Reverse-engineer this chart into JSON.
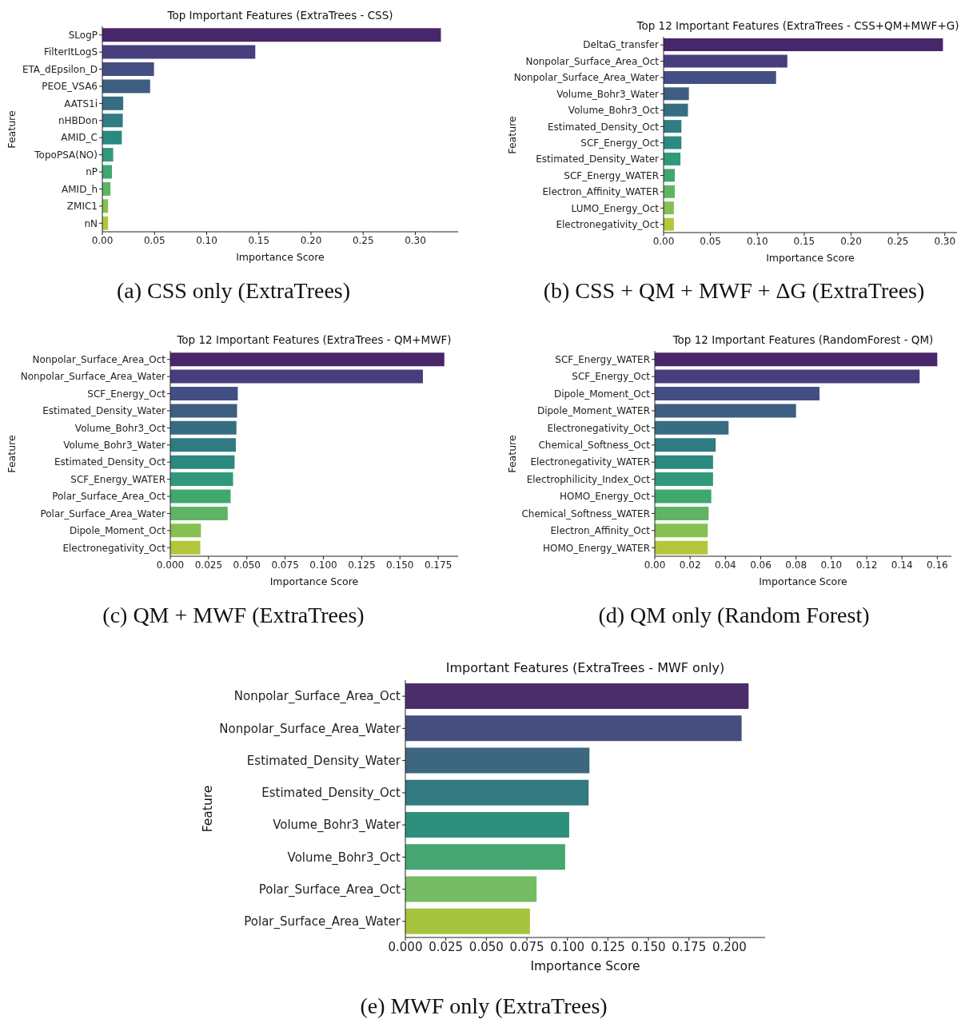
{
  "chart_data": [
    {
      "type": "bar",
      "orientation": "horizontal",
      "title": "Top Important Features (ExtraTrees - CSS)",
      "xlabel": "Importance Score",
      "ylabel": "Feature",
      "categories": [
        "SLogP",
        "FilterItLogS",
        "ETA_dEpsilon_D",
        "PEOE_VSA6",
        "AATS1i",
        "nHBDon",
        "AMID_C",
        "TopoPSA(NO)",
        "nP",
        "AMID_h",
        "ZMIC1",
        "nN"
      ],
      "values": [
        0.3245,
        0.1466,
        0.0495,
        0.0458,
        0.02,
        0.0196,
        0.0187,
        0.0104,
        0.0092,
        0.0078,
        0.0055,
        0.0055
      ],
      "colors": [
        "#47266a",
        "#483e7d",
        "#434e82",
        "#3d5e80",
        "#376d83",
        "#317b82",
        "#2b8a80",
        "#30997a",
        "#40a76f",
        "#5fb463",
        "#86bf52",
        "#b3c63c"
      ],
      "xlim": [
        0,
        0.341
      ],
      "xticks": [
        {
          "value": 0,
          "label": "0.00"
        },
        {
          "value": 0.05,
          "label": "0.05"
        },
        {
          "value": 0.1,
          "label": "0.10"
        },
        {
          "value": 0.15,
          "label": "0.15"
        },
        {
          "value": 0.2,
          "label": "0.20"
        },
        {
          "value": 0.25,
          "label": "0.25"
        },
        {
          "value": 0.3,
          "label": "0.30"
        }
      ],
      "annotations": [
        "(a) CSS only (ExtraTrees)"
      ]
    },
    {
      "type": "bar",
      "orientation": "horizontal",
      "title": "Top 12 Important Features (ExtraTrees - CSS+QM+MWF+G)",
      "xlabel": "Importance Score",
      "ylabel": "Feature",
      "categories": [
        "DeltaG_transfer",
        "Nonpolar_Surface_Area_Oct",
        "Nonpolar_Surface_Area_Water",
        "Volume_Bohr3_Water",
        "Volume_Bohr3_Oct",
        "Estimated_Density_Oct",
        "SCF_Energy_Oct",
        "Estimated_Density_Water",
        "SCF_Energy_WATER",
        "Electron_Affinity_WATER",
        "LUMO_Energy_Oct",
        "Electronegativity_Oct"
      ],
      "values": [
        0.298,
        0.132,
        0.12,
        0.027,
        0.026,
        0.019,
        0.019,
        0.018,
        0.012,
        0.012,
        0.011,
        0.011
      ],
      "colors": [
        "#47266a",
        "#483e7d",
        "#434e82",
        "#3d5e80",
        "#376d83",
        "#317b82",
        "#2b8a80",
        "#30997a",
        "#40a76f",
        "#5fb463",
        "#86bf52",
        "#b3c63c"
      ],
      "xlim": [
        0,
        0.313
      ],
      "xticks": [
        {
          "value": 0,
          "label": "0.00"
        },
        {
          "value": 0.05,
          "label": "0.05"
        },
        {
          "value": 0.1,
          "label": "0.10"
        },
        {
          "value": 0.15,
          "label": "0.15"
        },
        {
          "value": 0.2,
          "label": "0.20"
        },
        {
          "value": 0.25,
          "label": "0.25"
        },
        {
          "value": 0.3,
          "label": "0.30"
        }
      ],
      "annotations": [
        "(b) CSS + QM + MWF + ΔG (ExtraTrees)"
      ]
    },
    {
      "type": "bar",
      "orientation": "horizontal",
      "title": "Top 12 Important Features (ExtraTrees - QM+MWF)",
      "xlabel": "Importance Score",
      "ylabel": "Feature",
      "categories": [
        "Nonpolar_Surface_Area_Oct",
        "Nonpolar_Surface_Area_Water",
        "SCF_Energy_Oct",
        "Estimated_Density_Water",
        "Volume_Bohr3_Oct",
        "Volume_Bohr3_Water",
        "Estimated_Density_Oct",
        "SCF_Energy_WATER",
        "Polar_Surface_Area_Oct",
        "Polar_Surface_Area_Water",
        "Dipole_Moment_Oct",
        "Electronegativity_Oct"
      ],
      "values": [
        0.179,
        0.165,
        0.0441,
        0.0436,
        0.0432,
        0.0428,
        0.042,
        0.041,
        0.0394,
        0.0375,
        0.02,
        0.0196
      ],
      "colors": [
        "#47266a",
        "#483e7d",
        "#434e82",
        "#3d5e80",
        "#376d83",
        "#317b82",
        "#2b8a80",
        "#30997a",
        "#40a76f",
        "#5fb463",
        "#86bf52",
        "#b3c63c"
      ],
      "xlim": [
        0,
        0.188
      ],
      "xticks": [
        {
          "value": 0,
          "label": "0.000"
        },
        {
          "value": 0.025,
          "label": "0.025"
        },
        {
          "value": 0.05,
          "label": "0.050"
        },
        {
          "value": 0.075,
          "label": "0.075"
        },
        {
          "value": 0.1,
          "label": "0.100"
        },
        {
          "value": 0.125,
          "label": "0.125"
        },
        {
          "value": 0.15,
          "label": "0.150"
        },
        {
          "value": 0.175,
          "label": "0.175"
        }
      ],
      "annotations": [
        "(c) QM + MWF (ExtraTrees)"
      ]
    },
    {
      "type": "bar",
      "orientation": "horizontal",
      "title": "Top 12 Important Features (RandomForest - QM)",
      "xlabel": "Importance Score",
      "ylabel": "Feature",
      "categories": [
        "SCF_Energy_WATER",
        "SCF_Energy_Oct",
        "Dipole_Moment_Oct",
        "Dipole_Moment_WATER",
        "Electronegativity_Oct",
        "Chemical_Softness_Oct",
        "Electronegativity_WATER",
        "Electrophilicity_Index_Oct",
        "HOMO_Energy_Oct",
        "Chemical_Softness_WATER",
        "Electron_Affinity_Oct",
        "HOMO_Energy_WATER"
      ],
      "values": [
        0.16,
        0.15,
        0.0933,
        0.08,
        0.0418,
        0.0345,
        0.033,
        0.033,
        0.032,
        0.0305,
        0.03,
        0.03
      ],
      "colors": [
        "#47266a",
        "#483e7d",
        "#434e82",
        "#3d5e80",
        "#376d83",
        "#317b82",
        "#2b8a80",
        "#30997a",
        "#40a76f",
        "#5fb463",
        "#86bf52",
        "#b3c63c"
      ],
      "xlim": [
        0,
        0.168
      ],
      "xticks": [
        {
          "value": 0,
          "label": "0.00"
        },
        {
          "value": 0.02,
          "label": "0.02"
        },
        {
          "value": 0.04,
          "label": "0.04"
        },
        {
          "value": 0.06,
          "label": "0.06"
        },
        {
          "value": 0.08,
          "label": "0.08"
        },
        {
          "value": 0.1,
          "label": "0.10"
        },
        {
          "value": 0.12,
          "label": "0.12"
        },
        {
          "value": 0.14,
          "label": "0.14"
        },
        {
          "value": 0.16,
          "label": "0.16"
        }
      ],
      "annotations": [
        "(d) QM only (Random Forest)"
      ]
    },
    {
      "type": "bar",
      "orientation": "horizontal",
      "title": "Important Features (ExtraTrees - MWF only)",
      "xlabel": "Importance Score",
      "ylabel": "Feature",
      "categories": [
        "Nonpolar_Surface_Area_Oct",
        "Nonpolar_Surface_Area_Water",
        "Estimated_Density_Water",
        "Estimated_Density_Oct",
        "Volume_Bohr3_Water",
        "Volume_Bohr3_Oct",
        "Polar_Surface_Area_Oct",
        "Polar_Surface_Area_Water"
      ],
      "values": [
        0.2118,
        0.2075,
        0.1136,
        0.1131,
        0.1011,
        0.0986,
        0.081,
        0.0769
      ],
      "colors": [
        "#4a2e6c",
        "#464e7e",
        "#3d667f",
        "#327980",
        "#2e8f7c",
        "#45a672",
        "#74bb64",
        "#a8c43f"
      ],
      "xlim": [
        0,
        0.222
      ],
      "xticks": [
        {
          "value": 0,
          "label": "0.000"
        },
        {
          "value": 0.025,
          "label": "0.025"
        },
        {
          "value": 0.05,
          "label": "0.050"
        },
        {
          "value": 0.075,
          "label": "0.075"
        },
        {
          "value": 0.1,
          "label": "0.100"
        },
        {
          "value": 0.125,
          "label": "0.125"
        },
        {
          "value": 0.15,
          "label": "0.150"
        },
        {
          "value": 0.175,
          "label": "0.175"
        },
        {
          "value": 0.2,
          "label": "0.200"
        }
      ],
      "annotations": [
        "(e) MWF only (ExtraTrees)"
      ]
    }
  ]
}
